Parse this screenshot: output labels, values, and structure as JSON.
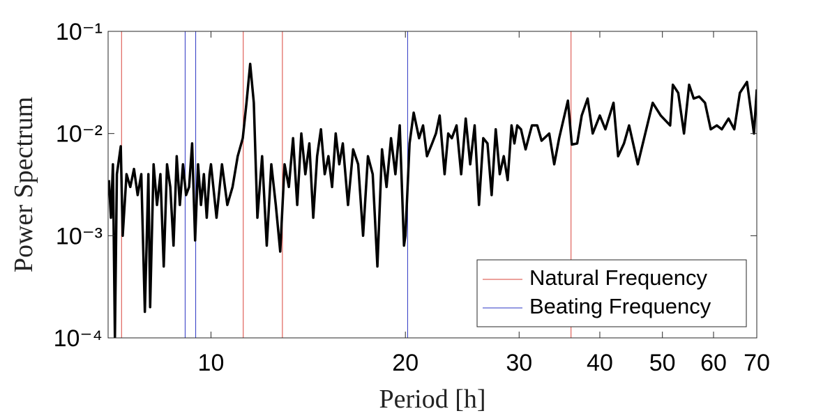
{
  "chart_data": {
    "type": "line",
    "xlabel": "Period [h]",
    "ylabel": "Power Spectrum",
    "xscale": "log",
    "yscale": "log",
    "xlim": [
      6.93,
      70
    ],
    "ylim": [
      0.0001,
      0.1
    ],
    "xticks": [
      10,
      20,
      30,
      40,
      50,
      60,
      70
    ],
    "yticks": [
      {
        "value": 0.0001,
        "label": "10⁻⁴"
      },
      {
        "value": 0.001,
        "label": "10⁻³"
      },
      {
        "value": 0.01,
        "label": "10⁻²"
      },
      {
        "value": 0.1,
        "label": "10⁻¹"
      }
    ],
    "legend": "lower right",
    "series": [
      {
        "color": "#000000",
        "x": [
          6.95,
          7.0,
          7.05,
          7.1,
          7.15,
          7.25,
          7.3,
          7.4,
          7.5,
          7.6,
          7.7,
          7.8,
          7.9,
          8.0,
          8.05,
          8.15,
          8.25,
          8.35,
          8.45,
          8.55,
          8.65,
          8.75,
          8.85,
          8.95,
          9.05,
          9.15,
          9.25,
          9.35,
          9.45,
          9.55,
          9.65,
          9.75,
          9.85,
          9.95,
          10.0,
          10.2,
          10.4,
          10.6,
          10.8,
          11.0,
          11.2,
          11.35,
          11.5,
          11.65,
          11.8,
          12.0,
          12.2,
          12.4,
          12.6,
          12.8,
          13.0,
          13.2,
          13.4,
          13.6,
          13.8,
          14.0,
          14.2,
          14.4,
          14.6,
          14.8,
          15.0,
          15.2,
          15.4,
          15.6,
          15.8,
          16.0,
          16.3,
          16.6,
          16.9,
          17.2,
          17.5,
          17.8,
          18.1,
          18.4,
          18.7,
          19.0,
          19.3,
          19.6,
          19.9,
          20.0,
          20.3,
          20.6,
          21.0,
          21.3,
          21.6,
          22.0,
          22.3,
          22.6,
          23.0,
          23.3,
          23.6,
          24.0,
          24.4,
          24.8,
          25.2,
          25.6,
          26.0,
          26.4,
          26.8,
          27.2,
          27.6,
          28.0,
          28.4,
          28.8,
          29.2,
          29.5,
          29.8,
          30.2,
          30.7,
          31.4,
          32.0,
          32.5,
          33.4,
          34.0,
          34.6,
          35.7,
          36.2,
          36.9,
          37.5,
          38.3,
          39.0,
          40.0,
          40.8,
          42.0,
          42.7,
          43.6,
          44.4,
          45.8,
          48.3,
          49.7,
          51.4,
          51.9,
          52.9,
          54.0,
          55.0,
          55.9,
          57.0,
          58.2,
          59.4,
          60.7,
          61.8,
          63.3,
          64.6,
          65.9,
          67.6,
          69.3,
          70
        ],
        "values": [
          0.0035,
          0.0015,
          0.005,
          0.0001,
          0.004,
          0.0075,
          0.001,
          0.004,
          0.003,
          0.0045,
          0.0025,
          0.004,
          0.00018,
          0.004,
          0.0002,
          0.005,
          0.002,
          0.004,
          0.0005,
          0.005,
          0.003,
          0.0008,
          0.006,
          0.002,
          0.005,
          0.0025,
          0.003,
          0.008,
          0.0009,
          0.005,
          0.002,
          0.004,
          0.0015,
          0.004,
          0.005,
          0.0015,
          0.005,
          0.002,
          0.003,
          0.006,
          0.009,
          0.02,
          0.048,
          0.02,
          0.0015,
          0.006,
          0.0008,
          0.005,
          0.002,
          0.0007,
          0.005,
          0.003,
          0.009,
          0.002,
          0.01,
          0.004,
          0.008,
          0.0015,
          0.006,
          0.011,
          0.004,
          0.006,
          0.003,
          0.01,
          0.005,
          0.008,
          0.002,
          0.007,
          0.005,
          0.001,
          0.006,
          0.004,
          0.0005,
          0.007,
          0.003,
          0.009,
          0.004,
          0.012,
          0.0008,
          0.001,
          0.008,
          0.016,
          0.009,
          0.012,
          0.006,
          0.008,
          0.01,
          0.015,
          0.004,
          0.01,
          0.009,
          0.012,
          0.004,
          0.014,
          0.005,
          0.012,
          0.002,
          0.009,
          0.008,
          0.0025,
          0.011,
          0.004,
          0.006,
          0.0035,
          0.012,
          0.008,
          0.012,
          0.011,
          0.007,
          0.012,
          0.012,
          0.0085,
          0.01,
          0.005,
          0.009,
          0.021,
          0.0078,
          0.008,
          0.015,
          0.022,
          0.01,
          0.015,
          0.011,
          0.02,
          0.006,
          0.008,
          0.012,
          0.005,
          0.02,
          0.015,
          0.012,
          0.03,
          0.025,
          0.01,
          0.03,
          0.022,
          0.023,
          0.02,
          0.011,
          0.012,
          0.011,
          0.014,
          0.011,
          0.025,
          0.032,
          0.01,
          0.027
        ]
      }
    ],
    "vlines": [
      {
        "name": "Natural Frequency",
        "color": "#d9433a",
        "x": [
          7.27,
          11.22,
          12.9,
          36.1
        ]
      },
      {
        "name": "Beating Frequency",
        "color": "#2b35c4",
        "x": [
          9.12,
          9.47,
          20.16
        ]
      }
    ]
  }
}
